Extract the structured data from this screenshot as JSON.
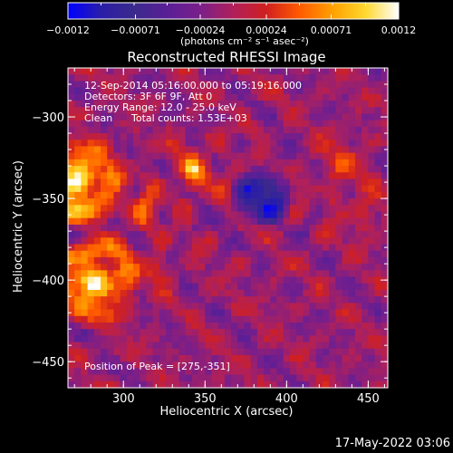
{
  "chart_data": {
    "type": "heatmap",
    "title": "Reconstructed RHESSI Image",
    "xlabel": "Heliocentric X (arcsec)",
    "ylabel": "Heliocentric Y (arcsec)",
    "xlim": [
      266,
      462
    ],
    "ylim": [
      -466,
      -270
    ],
    "x_ticks": [
      300,
      350,
      400,
      450
    ],
    "y_ticks": [
      -300,
      -350,
      -400,
      -450
    ],
    "x_tick_labels": [
      "300",
      "350",
      "400",
      "450"
    ],
    "y_tick_labels": [
      "−300",
      "−350",
      "−400",
      "−450"
    ],
    "colorbar": {
      "range": [
        -0.0012,
        0.0012
      ],
      "ticks": [
        -0.0012,
        -0.00071,
        -0.00024,
        0.00024,
        0.00071,
        0.0012
      ],
      "tick_labels": [
        "−0.0012",
        "−0.00071",
        "−0.00024",
        "0.00024",
        "0.00071",
        "0.0012"
      ],
      "units_label": "(photons cm⁻² s⁻¹ asec⁻²)",
      "colors": [
        "#0000ff",
        "#2a1da8",
        "#3b2a8c",
        "#5a1f96",
        "#7a1f8a",
        "#b0205a",
        "#d02020",
        "#ff5a00",
        "#ffa000",
        "#ffd830",
        "#ffffff"
      ]
    },
    "annotations": [
      "12-Sep-2014 05:16:00.000 to 05:19:16.000",
      "Detectors: 3F 6F 9F, Att 0",
      "Energy Range: 12.0 - 25.0 keV",
      "Clean",
      "Total counts: 1.53E+03"
    ],
    "peak_label": "Position of Peak = [275,-351]",
    "peak": {
      "x": 275,
      "y": -351
    },
    "pixel_size_arcsec": 4,
    "sources": [
      {
        "x": 272,
        "y": -340,
        "amplitude": 0.00125,
        "sigma": 14
      },
      {
        "x": 282,
        "y": -400,
        "amplitude": 0.00115,
        "sigma": 14
      },
      {
        "x": 344,
        "y": -333,
        "amplitude": 0.00065,
        "sigma": 9
      },
      {
        "x": 312,
        "y": -357,
        "amplitude": 0.0005,
        "sigma": 8
      },
      {
        "x": 318,
        "y": -392,
        "amplitude": 0.0003,
        "sigma": 8
      },
      {
        "x": 434,
        "y": -330,
        "amplitude": 0.0004,
        "sigma": 10
      },
      {
        "x": 445,
        "y": -360,
        "amplitude": 0.0003,
        "sigma": 9
      },
      {
        "x": 385,
        "y": -350,
        "amplitude": -0.0009,
        "sigma": 10
      }
    ]
  },
  "footer_date": "17-May-2022 03:06"
}
